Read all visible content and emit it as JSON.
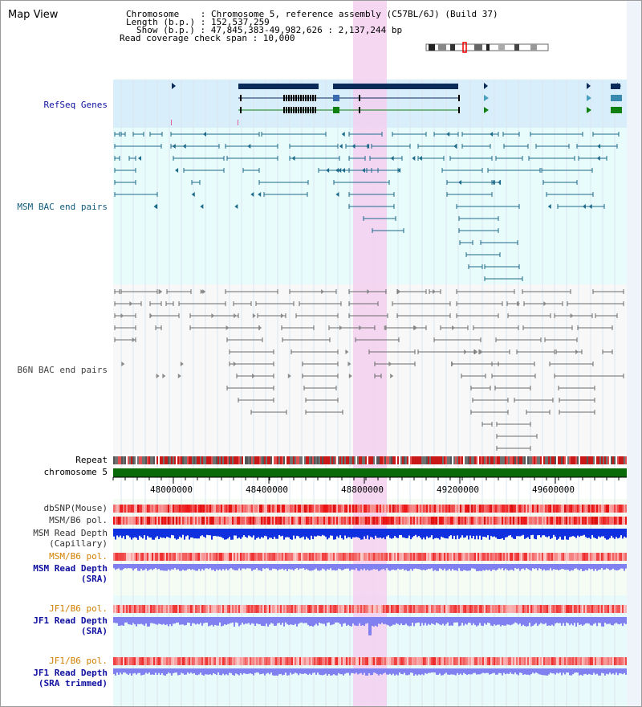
{
  "map_view": {
    "title": "Map View",
    "header": {
      "chromosome_line": "Chromosome    : Chromosome 5, reference assembly (C57BL/6J) (Build 37)",
      "length_line": "Length (b.p.) : 152,537,259",
      "show_line": "Show (b.p.) : 47,845,383-49,982,626 : 2,137,244 bp",
      "span_line": "Read coverage check span : 10,000"
    },
    "colors": {
      "refseq_bg": "#d8eefa",
      "msm_bac_bg": "#e8fcfc",
      "b6n_bac_bg": "#f8f8f8",
      "highlight": "#f4d0f0",
      "msm_bac_line": "#1e6a8a",
      "b6n_bac_line": "#6a6a6a",
      "gene_dark": "#0a2a5a",
      "gene_green": "#108010",
      "chromosome_bar": "#0a6a0a",
      "read_depth_blue": "#1030e0",
      "sra_depth": "#8080f0",
      "pol_red": "#e84848",
      "label_blue": "#1010a0",
      "label_teal": "#105a7a",
      "label_orange": "#d08000"
    },
    "tracks": {
      "refseq": "RefSeq Genes",
      "msm_bac": "MSM BAC end pairs",
      "b6n_bac": "B6N BAC end pairs",
      "repeat": "Repeat",
      "chromosome": "chromosome 5",
      "dbsnp": "dbSNP(Mouse)",
      "msm_b6_pol": "MSM/B6 pol.",
      "msm_read_depth_cap_1": "MSM Read Depth",
      "msm_read_depth_cap_2": "(Capillary)",
      "msm_b6_pol_sra": "MSM/B6 pol.",
      "msm_read_depth_sra_1": "MSM Read Depth",
      "msm_read_depth_sra_2": "(SRA)",
      "jf1_b6_pol_1": "JF1/B6 pol.",
      "jf1_read_depth_1": "JF1 Read Depth",
      "jf1_read_depth_1_sub": "(SRA)",
      "jf1_b6_pol_2": "JF1/B6 pol.",
      "jf1_read_depth_2": "JF1 Read Depth",
      "jf1_read_depth_2_sub": "(SRA trimmed)"
    },
    "axis": {
      "ticks": [
        "48000000",
        "48400000",
        "48800000",
        "49200000",
        "49600000"
      ]
    }
  }
}
